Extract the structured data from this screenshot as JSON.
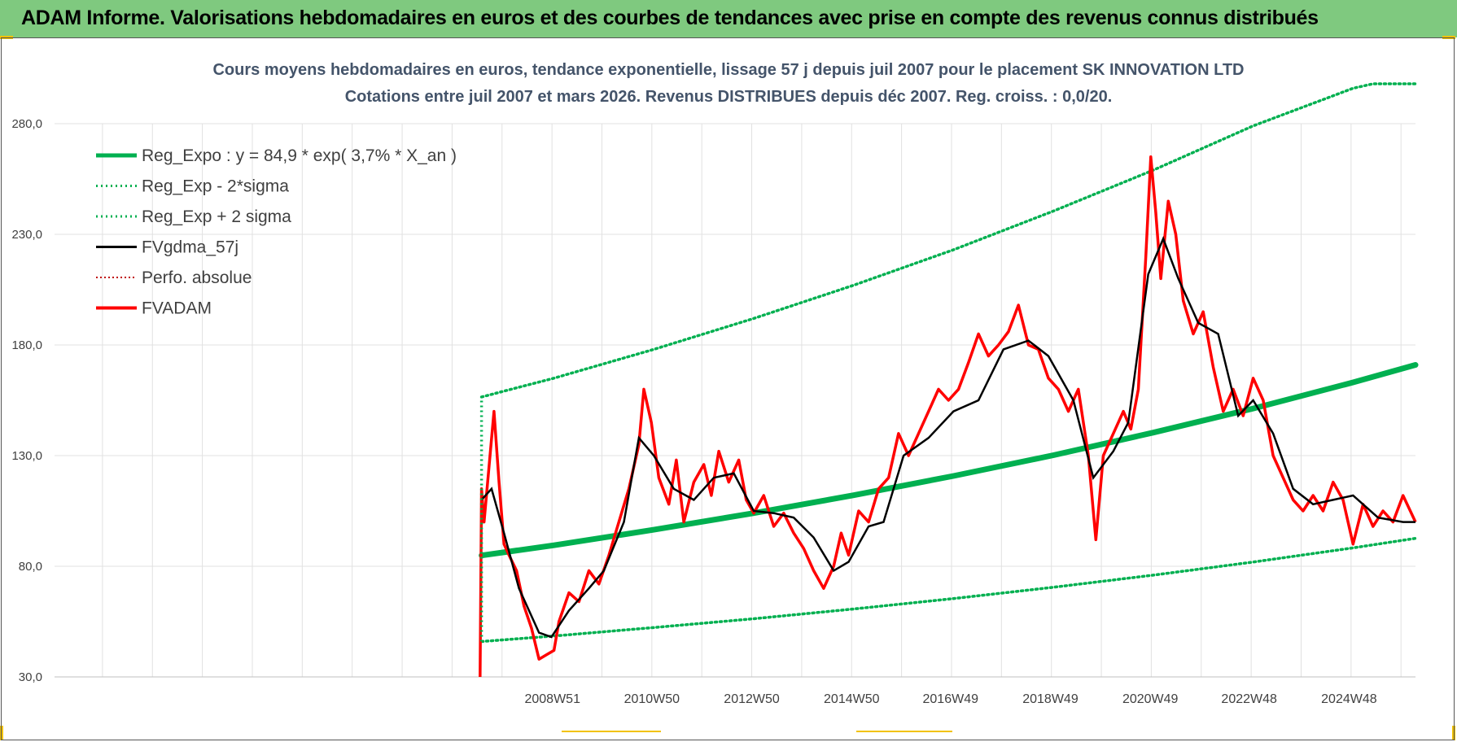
{
  "header": {
    "title": "ADAM Informe. Valorisations hebdomadaires en euros et des courbes de tendances avec prise en compte des revenus connus distribués"
  },
  "colors": {
    "header_bg": "#7fc97f",
    "trend": "#00b050",
    "price": "#ff0000",
    "smoothed": "#000000"
  },
  "chart_data": {
    "type": "line",
    "title": [
      "Cours moyens hebdomadaires en euros, tendance exponentielle, lissage 57 j depuis juil 2007 pour le placement SK INNOVATION LTD",
      "Cotations entre juil 2007 et mars 2026. Revenus DISTRIBUES depuis déc 2007. Reg. croiss. : 0,0/20."
    ],
    "y_ticks": [
      "280,0",
      "230,0",
      "180,0",
      "130,0",
      "80,0",
      "30,0"
    ],
    "y_range": [
      30,
      280
    ],
    "x_tick_labels": [
      "2008W51",
      "2010W50",
      "2012W50",
      "2014W50",
      "2016W49",
      "2018W49",
      "2020W49",
      "2022W48",
      "2024W48"
    ],
    "x_tick_years": [
      2008.97,
      2010.96,
      2012.96,
      2014.96,
      2016.94,
      2018.94,
      2020.94,
      2022.92,
      2024.92
    ],
    "x_range": [
      1999.0,
      2026.25
    ],
    "grid": "on",
    "legend_position": "top-left",
    "legend": [
      {
        "label": "Reg_Expo : y = 84,9 * exp( 3,7% *  X_an )",
        "style": "trend-solid"
      },
      {
        "label": "Reg_Exp - 2*sigma",
        "style": "trend-dotted"
      },
      {
        "label": "Reg_Exp + 2 sigma",
        "style": "trend-dotted"
      },
      {
        "label": "FVgdma_57j",
        "style": "smoothed"
      },
      {
        "label": "Perfo. absolue",
        "style": "perfo-dotted"
      },
      {
        "label": "FVADAM",
        "style": "price"
      }
    ],
    "series": [
      {
        "name": "Reg_Expo : y = 84,9 * exp( 3,7% *  X_an )",
        "x": [
          2007.55,
          2009.0,
          2011.0,
          2013.0,
          2015.0,
          2017.0,
          2019.0,
          2021.0,
          2023.0,
          2025.0,
          2026.25
        ],
        "values": [
          84.9,
          89.5,
          96.5,
          104.0,
          112.1,
          120.8,
          130.2,
          140.4,
          151.3,
          163.1,
          171.0
        ]
      },
      {
        "name": "Reg_Exp - 2*sigma",
        "x": [
          2007.55,
          2009.0,
          2011.0,
          2013.0,
          2015.0,
          2017.0,
          2019.0,
          2021.0,
          2023.0,
          2025.0,
          2026.25
        ],
        "values": [
          46,
          48.5,
          52.3,
          56.3,
          60.7,
          65.4,
          70.5,
          76.0,
          81.9,
          88.3,
          92.6
        ]
      },
      {
        "name": "Reg_Exp + 2 sigma",
        "x": [
          2007.55,
          2009.0,
          2011.0,
          2013.0,
          2015.0,
          2017.0,
          2019.0,
          2021.0,
          2023.0,
          2025.0,
          2025.4,
          2026.25
        ],
        "values": [
          156.5,
          165,
          178,
          192,
          207,
          223,
          240.5,
          259,
          279,
          296,
          298,
          298
        ]
      },
      {
        "name": "FVgdma_57j",
        "x": [
          2007.55,
          2007.75,
          2008.0,
          2008.3,
          2008.7,
          2008.95,
          2009.3,
          2009.7,
          2010.0,
          2010.4,
          2010.7,
          2011.0,
          2011.4,
          2011.8,
          2012.2,
          2012.6,
          2013.0,
          2013.4,
          2013.8,
          2014.2,
          2014.6,
          2014.9,
          2015.3,
          2015.6,
          2016.0,
          2016.5,
          2017.0,
          2017.5,
          2018.0,
          2018.5,
          2018.9,
          2019.4,
          2019.8,
          2020.2,
          2020.5,
          2020.9,
          2021.2,
          2021.5,
          2021.9,
          2022.3,
          2022.7,
          2023.0,
          2023.4,
          2023.8,
          2024.2,
          2024.6,
          2025.0,
          2025.5,
          2026.0,
          2026.25
        ],
        "values": [
          110,
          115,
          95,
          70,
          50,
          48,
          60,
          70,
          78,
          100,
          138,
          130,
          115,
          110,
          120,
          122,
          105,
          104,
          102,
          93,
          78,
          82,
          98,
          100,
          130,
          138,
          150,
          155,
          178,
          182,
          175,
          155,
          120,
          132,
          145,
          212,
          228,
          210,
          190,
          185,
          148,
          155,
          140,
          115,
          108,
          110,
          112,
          102,
          100,
          100
        ]
      },
      {
        "name": "FVADAM",
        "x": [
          2007.52,
          2007.55,
          2007.6,
          2007.7,
          2007.8,
          2007.9,
          2008.0,
          2008.1,
          2008.25,
          2008.4,
          2008.55,
          2008.7,
          2008.85,
          2009.0,
          2009.1,
          2009.3,
          2009.5,
          2009.7,
          2009.9,
          2010.1,
          2010.3,
          2010.5,
          2010.7,
          2010.8,
          2010.95,
          2011.1,
          2011.3,
          2011.45,
          2011.6,
          2011.8,
          2012.0,
          2012.15,
          2012.3,
          2012.5,
          2012.7,
          2012.85,
          2013.0,
          2013.2,
          2013.4,
          2013.6,
          2013.8,
          2014.0,
          2014.2,
          2014.4,
          2014.6,
          2014.75,
          2014.9,
          2015.1,
          2015.3,
          2015.5,
          2015.7,
          2015.9,
          2016.1,
          2016.3,
          2016.5,
          2016.7,
          2016.9,
          2017.1,
          2017.3,
          2017.5,
          2017.7,
          2017.9,
          2018.1,
          2018.3,
          2018.5,
          2018.7,
          2018.9,
          2019.1,
          2019.3,
          2019.5,
          2019.7,
          2019.85,
          2020.0,
          2020.2,
          2020.4,
          2020.55,
          2020.7,
          2020.85,
          2020.95,
          2021.05,
          2021.15,
          2021.3,
          2021.45,
          2021.6,
          2021.8,
          2022.0,
          2022.2,
          2022.4,
          2022.6,
          2022.8,
          2023.0,
          2023.2,
          2023.4,
          2023.6,
          2023.8,
          2024.0,
          2024.2,
          2024.4,
          2024.6,
          2024.8,
          2025.0,
          2025.2,
          2025.4,
          2025.6,
          2025.8,
          2026.0,
          2026.25
        ],
        "values": [
          30,
          115,
          100,
          125,
          150,
          118,
          90,
          85,
          78,
          62,
          52,
          38,
          40,
          42,
          55,
          68,
          64,
          78,
          72,
          85,
          100,
          115,
          135,
          160,
          145,
          120,
          108,
          128,
          100,
          118,
          126,
          112,
          132,
          118,
          128,
          110,
          104,
          112,
          98,
          104,
          95,
          88,
          78,
          70,
          80,
          95,
          85,
          105,
          100,
          115,
          120,
          140,
          130,
          140,
          150,
          160,
          155,
          160,
          172,
          185,
          175,
          180,
          186,
          198,
          180,
          178,
          165,
          160,
          150,
          160,
          130,
          92,
          130,
          140,
          150,
          142,
          160,
          220,
          265,
          240,
          210,
          245,
          230,
          200,
          185,
          195,
          170,
          150,
          160,
          148,
          165,
          155,
          130,
          120,
          110,
          105,
          112,
          105,
          118,
          110,
          90,
          108,
          98,
          105,
          100,
          112,
          100
        ]
      }
    ]
  }
}
